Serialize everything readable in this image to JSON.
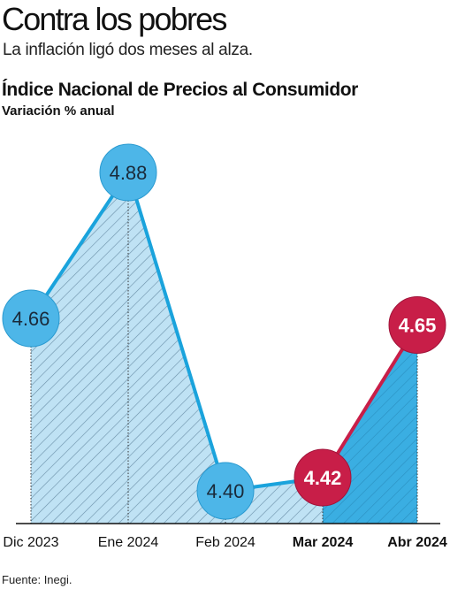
{
  "headline": "Contra los pobres",
  "subheadline": "La inflación ligó dos meses al alza.",
  "source": "Fuente: Inegi.",
  "colors": {
    "line_blue": "#1aa3dc",
    "circle_blue": "#4db6e8",
    "fill_blue_light": "#bfe2f4",
    "fill_blue_dark": "#3aaee2",
    "accent_red": "#c81e48",
    "hatch": "#6a8fa8"
  },
  "chart_data": {
    "type": "area",
    "title": "Índice Nacional de Precios al Consumidor",
    "subtitle": "Variación % anual",
    "categories": [
      "Dic 2023",
      "Ene 2024",
      "Feb 2024",
      "Mar 2024",
      "Abr 2024"
    ],
    "values": [
      4.66,
      4.88,
      4.4,
      4.42,
      4.65
    ],
    "value_labels": [
      "4.66",
      "4.88",
      "4.40",
      "4.42",
      "4.65"
    ],
    "highlighted_categories": [
      "Mar 2024",
      "Abr 2024"
    ],
    "grid": false,
    "legend": "none"
  }
}
